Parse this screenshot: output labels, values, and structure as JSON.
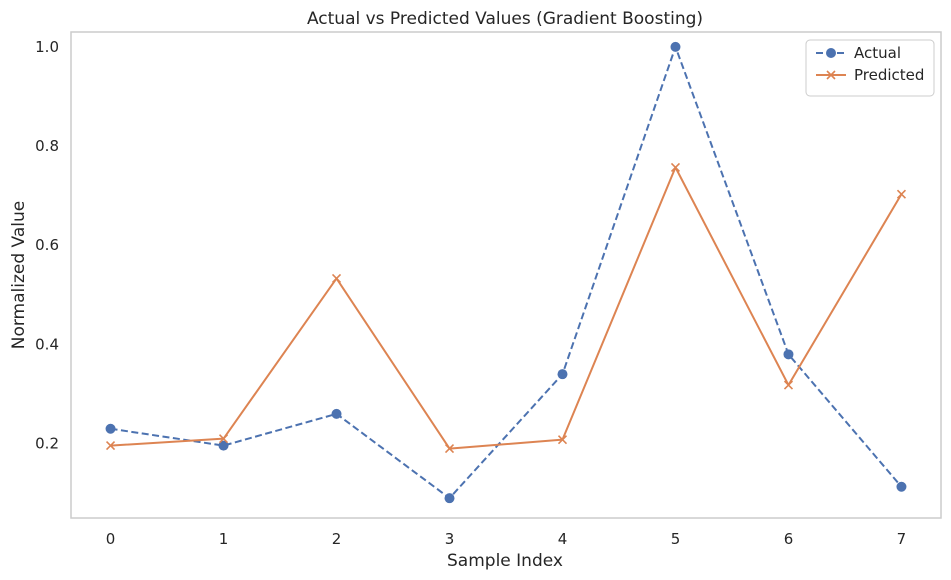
{
  "chart_data": {
    "type": "line",
    "title": "Actual vs Predicted Values (Gradient Boosting)",
    "xlabel": "Sample Index",
    "ylabel": "Normalized Value",
    "x": [
      0,
      1,
      2,
      3,
      4,
      5,
      6,
      7
    ],
    "xlim": [
      -0.35,
      7.35
    ],
    "ylim": [
      0.05,
      1.03
    ],
    "xticks": [
      "0",
      "1",
      "2",
      "3",
      "4",
      "5",
      "6",
      "7"
    ],
    "yticks": [
      {
        "value": 0.2,
        "label": "0.2"
      },
      {
        "value": 0.4,
        "label": "0.4"
      },
      {
        "value": 0.6,
        "label": "0.6"
      },
      {
        "value": 0.8,
        "label": "0.8"
      },
      {
        "value": 1.0,
        "label": "1.0"
      }
    ],
    "grid": false,
    "legend_position": "top-right",
    "series": [
      {
        "name": "Actual",
        "color": "#4c72b0",
        "line_style": "dashed",
        "marker": "circle",
        "values": [
          0.23,
          0.196,
          0.26,
          0.09,
          0.34,
          1.0,
          0.38,
          0.113
        ]
      },
      {
        "name": "Predicted",
        "color": "#dd8452",
        "line_style": "solid",
        "marker": "x",
        "values": [
          0.196,
          0.21,
          0.533,
          0.19,
          0.208,
          0.757,
          0.318,
          0.703
        ]
      }
    ]
  }
}
